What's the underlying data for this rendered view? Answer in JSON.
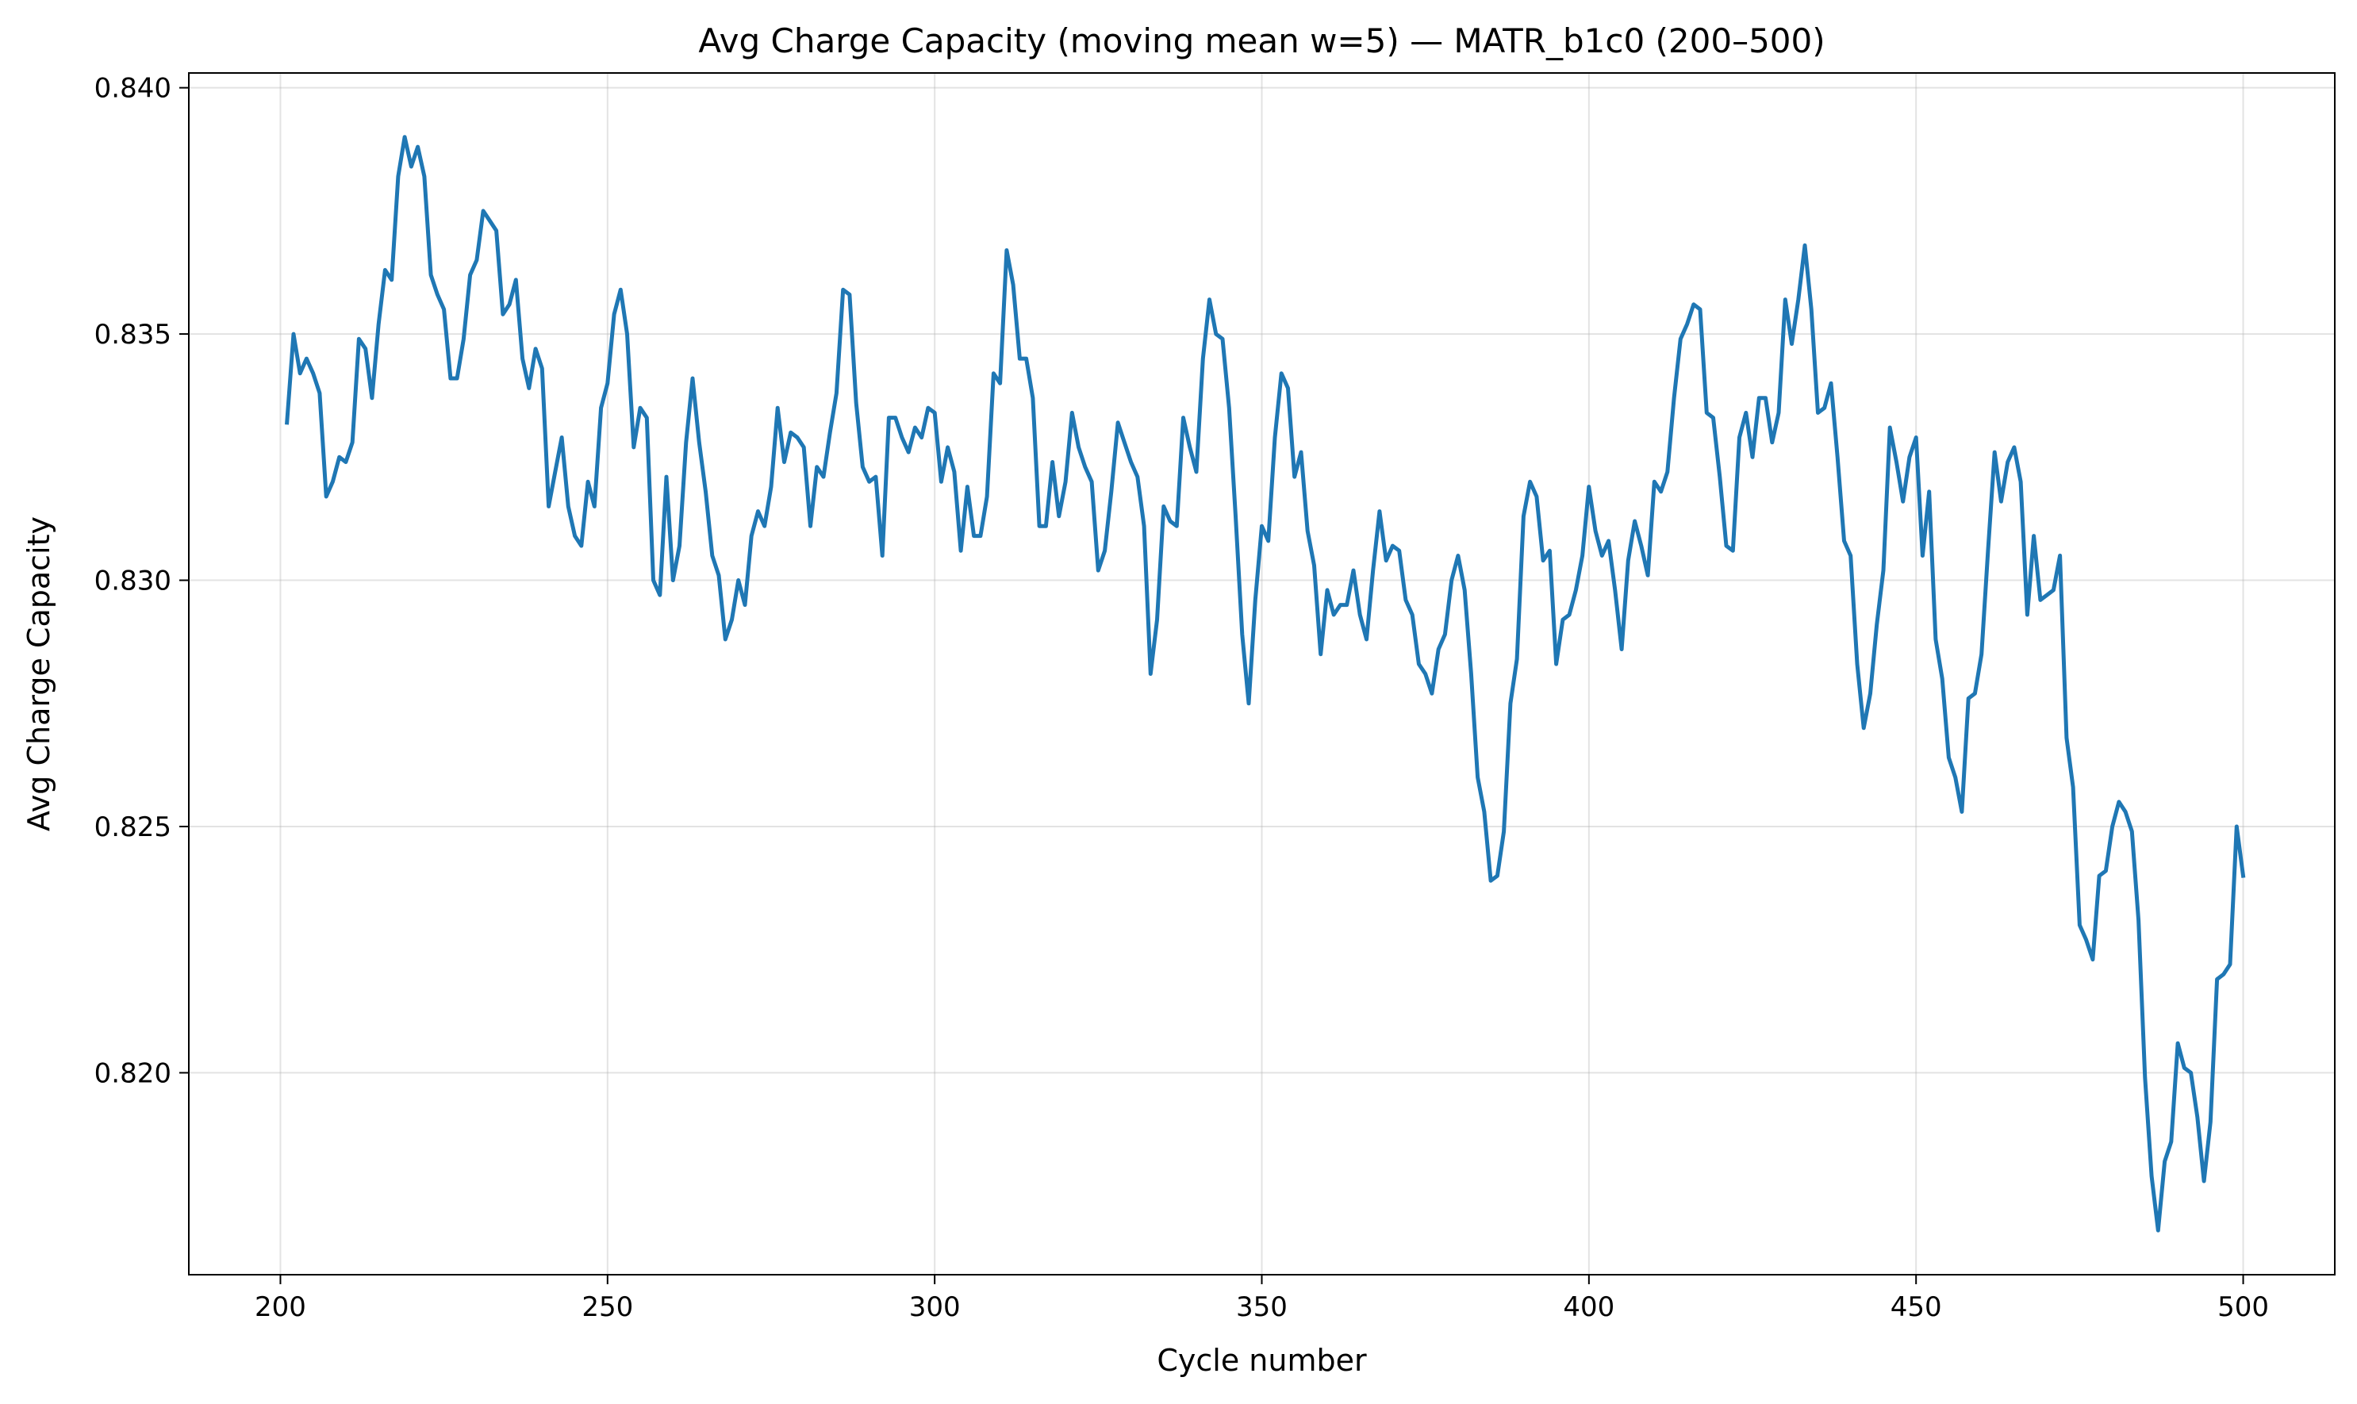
{
  "chart_data": {
    "type": "line",
    "title": "Avg Charge Capacity (moving mean w=5) — MATR_b1c0 (200–500)",
    "xlabel": "Cycle number",
    "ylabel": "Avg Charge Capacity",
    "xlim": [
      186,
      514
    ],
    "ylim": [
      0.8159,
      0.8403
    ],
    "xticks": [
      200,
      250,
      300,
      350,
      400,
      450,
      500
    ],
    "yticks": [
      0.82,
      0.825,
      0.83,
      0.835,
      0.84
    ],
    "xtick_labels": [
      "200",
      "250",
      "300",
      "350",
      "400",
      "450",
      "500"
    ],
    "ytick_labels": [
      "0.820",
      "0.825",
      "0.830",
      "0.835",
      "0.840"
    ],
    "grid": true,
    "line_color": "#1f77b4",
    "series": [
      {
        "x": [
          201,
          202,
          203,
          204,
          205,
          206,
          207,
          208,
          209,
          210,
          211,
          212,
          213,
          214,
          215,
          216,
          217,
          218,
          219,
          220,
          221,
          222,
          223,
          224,
          225,
          226,
          227,
          228,
          229,
          230,
          231,
          232,
          233,
          234,
          235,
          236,
          237,
          238,
          239,
          240,
          241,
          242,
          243,
          244,
          245,
          246,
          247,
          248,
          249,
          250,
          251,
          252,
          253,
          254,
          255,
          256,
          257,
          258,
          259,
          260,
          261,
          262,
          263,
          264,
          265,
          266,
          267,
          268,
          269,
          270,
          271,
          272,
          273,
          274,
          275,
          276,
          277,
          278,
          279,
          280,
          281,
          282,
          283,
          284,
          285,
          286,
          287,
          288,
          289,
          290,
          291,
          292,
          293,
          294,
          295,
          296,
          297,
          298,
          299,
          300,
          301,
          302,
          303,
          304,
          305,
          306,
          307,
          308,
          309,
          310,
          311,
          312,
          313,
          314,
          315,
          316,
          317,
          318,
          319,
          320,
          321,
          322,
          323,
          324,
          325,
          326,
          327,
          328,
          329,
          330,
          331,
          332,
          333,
          334,
          335,
          336,
          337,
          338,
          339,
          340,
          341,
          342,
          343,
          344,
          345,
          346,
          347,
          348,
          349,
          350,
          351,
          352,
          353,
          354,
          355,
          356,
          357,
          358,
          359,
          360,
          361,
          362,
          363,
          364,
          365,
          366,
          367,
          368,
          369,
          370,
          371,
          372,
          373,
          374,
          375,
          376,
          377,
          378,
          379,
          380,
          381,
          382,
          383,
          384,
          385,
          386,
          387,
          388,
          389,
          390,
          391,
          392,
          393,
          394,
          395,
          396,
          397,
          398,
          399,
          400,
          401,
          402,
          403,
          404,
          405,
          406,
          407,
          408,
          409,
          410,
          411,
          412,
          413,
          414,
          415,
          416,
          417,
          418,
          419,
          420,
          421,
          422,
          423,
          424,
          425,
          426,
          427,
          428,
          429,
          430,
          431,
          432,
          433,
          434,
          435,
          436,
          437,
          438,
          439,
          440,
          441,
          442,
          443,
          444,
          445,
          446,
          447,
          448,
          449,
          450,
          451,
          452,
          453,
          454,
          455,
          456,
          457,
          458,
          459,
          460,
          461,
          462,
          463,
          464,
          465,
          466,
          467,
          468,
          469,
          470,
          471,
          472,
          473,
          474,
          475,
          476,
          477,
          478,
          479,
          480,
          481,
          482,
          483,
          484,
          485,
          486,
          487,
          488,
          489,
          490,
          491,
          492,
          493,
          494,
          495,
          496,
          497,
          498,
          499,
          500
        ],
        "y": [
          0.8332,
          0.835,
          0.8342,
          0.8345,
          0.8342,
          0.8338,
          0.8317,
          0.832,
          0.8325,
          0.8324,
          0.8328,
          0.8349,
          0.8347,
          0.8337,
          0.8352,
          0.8363,
          0.8361,
          0.8382,
          0.839,
          0.8384,
          0.8388,
          0.8382,
          0.8362,
          0.8358,
          0.8355,
          0.8341,
          0.8341,
          0.8349,
          0.8362,
          0.8365,
          0.8375,
          0.8373,
          0.8371,
          0.8354,
          0.8356,
          0.8361,
          0.8345,
          0.8339,
          0.8347,
          0.8343,
          0.8315,
          0.8322,
          0.8329,
          0.8315,
          0.8309,
          0.8307,
          0.832,
          0.8315,
          0.8335,
          0.834,
          0.8354,
          0.8359,
          0.835,
          0.8327,
          0.8335,
          0.8333,
          0.83,
          0.8297,
          0.8321,
          0.83,
          0.8307,
          0.8328,
          0.8341,
          0.8328,
          0.8318,
          0.8305,
          0.8301,
          0.8288,
          0.8292,
          0.83,
          0.8295,
          0.8309,
          0.8314,
          0.8311,
          0.8319,
          0.8335,
          0.8324,
          0.833,
          0.8329,
          0.8327,
          0.8311,
          0.8323,
          0.8321,
          0.833,
          0.8338,
          0.8359,
          0.8358,
          0.8336,
          0.8323,
          0.832,
          0.8321,
          0.8305,
          0.8333,
          0.8333,
          0.8329,
          0.8326,
          0.8331,
          0.8329,
          0.8335,
          0.8334,
          0.832,
          0.8327,
          0.8322,
          0.8306,
          0.8319,
          0.8309,
          0.8309,
          0.8317,
          0.8342,
          0.834,
          0.8367,
          0.836,
          0.8345,
          0.8345,
          0.8337,
          0.8311,
          0.8311,
          0.8324,
          0.8313,
          0.832,
          0.8334,
          0.8327,
          0.8323,
          0.832,
          0.8302,
          0.8306,
          0.8318,
          0.8332,
          0.8328,
          0.8324,
          0.8321,
          0.8311,
          0.8281,
          0.8292,
          0.8315,
          0.8312,
          0.8311,
          0.8333,
          0.8327,
          0.8322,
          0.8345,
          0.8357,
          0.835,
          0.8349,
          0.8335,
          0.8313,
          0.8289,
          0.8275,
          0.8296,
          0.8311,
          0.8308,
          0.8329,
          0.8342,
          0.8339,
          0.8321,
          0.8326,
          0.831,
          0.8303,
          0.8285,
          0.8298,
          0.8293,
          0.8295,
          0.8295,
          0.8302,
          0.8293,
          0.8288,
          0.8302,
          0.8314,
          0.8304,
          0.8307,
          0.8306,
          0.8296,
          0.8293,
          0.8283,
          0.8281,
          0.8277,
          0.8286,
          0.8289,
          0.83,
          0.8305,
          0.8298,
          0.8281,
          0.826,
          0.8253,
          0.8239,
          0.824,
          0.8249,
          0.8275,
          0.8284,
          0.8313,
          0.832,
          0.8317,
          0.8304,
          0.8306,
          0.8283,
          0.8292,
          0.8293,
          0.8298,
          0.8305,
          0.8319,
          0.831,
          0.8305,
          0.8308,
          0.8298,
          0.8286,
          0.8304,
          0.8312,
          0.8307,
          0.8301,
          0.832,
          0.8318,
          0.8322,
          0.8337,
          0.8349,
          0.8352,
          0.8356,
          0.8355,
          0.8334,
          0.8333,
          0.8321,
          0.8307,
          0.8306,
          0.8329,
          0.8334,
          0.8325,
          0.8337,
          0.8337,
          0.8328,
          0.8334,
          0.8357,
          0.8348,
          0.8357,
          0.8368,
          0.8355,
          0.8334,
          0.8335,
          0.834,
          0.8325,
          0.8308,
          0.8305,
          0.8283,
          0.827,
          0.8277,
          0.8291,
          0.8302,
          0.8331,
          0.8324,
          0.8316,
          0.8325,
          0.8329,
          0.8305,
          0.8318,
          0.8288,
          0.828,
          0.8264,
          0.826,
          0.8253,
          0.8276,
          0.8277,
          0.8285,
          0.8306,
          0.8326,
          0.8316,
          0.8324,
          0.8327,
          0.832,
          0.8293,
          0.8309,
          0.8296,
          0.8297,
          0.8298,
          0.8305,
          0.8268,
          0.8258,
          0.823,
          0.8227,
          0.8223,
          0.824,
          0.8241,
          0.825,
          0.8255,
          0.8253,
          0.8249,
          0.8231,
          0.8199,
          0.8179,
          0.8168,
          0.8182,
          0.8186,
          0.8206,
          0.8201,
          0.82,
          0.8191,
          0.8178,
          0.819,
          0.8219,
          0.822,
          0.8222,
          0.825,
          0.824
        ]
      }
    ]
  }
}
